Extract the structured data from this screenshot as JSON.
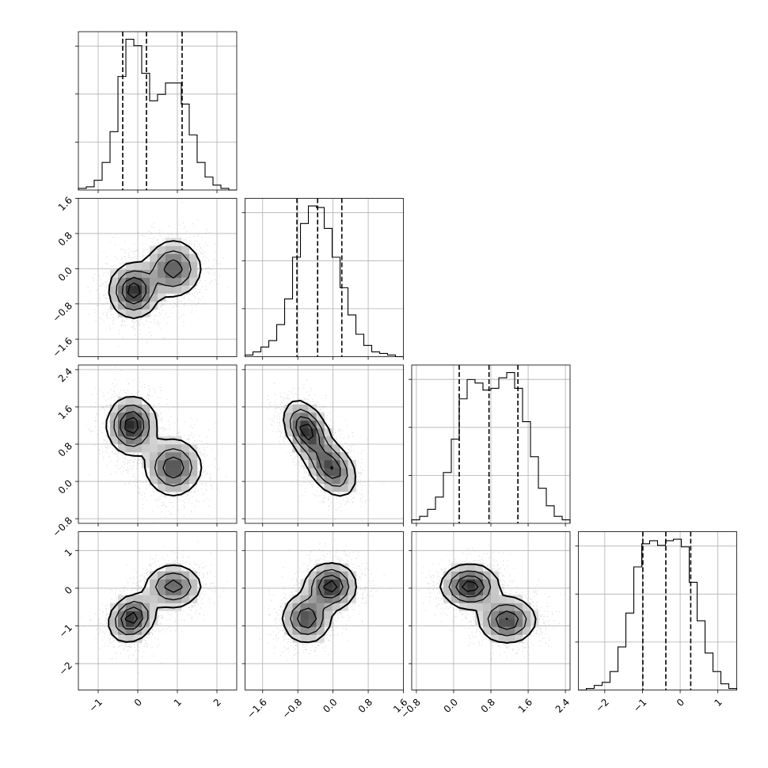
{
  "chart_data": {
    "type": "corner",
    "n_params": 4,
    "grid": true,
    "axis_ranges": [
      [
        -1.5,
        2.5
      ],
      [
        -2.0,
        1.6
      ],
      [
        -0.9,
        2.5
      ],
      [
        -2.7,
        1.5
      ]
    ],
    "tick_values": [
      [
        -1,
        0,
        1,
        2
      ],
      [
        -1.6,
        -0.8,
        0.0,
        0.8,
        1.6
      ],
      [
        -0.8,
        0.0,
        0.8,
        1.6,
        2.4
      ],
      [
        -2,
        -1,
        0,
        1
      ]
    ],
    "tick_labels": [
      [
        "−1",
        "0",
        "1",
        "2"
      ],
      [
        "−1.6",
        "−0.8",
        "0.0",
        "0.8",
        "1.6"
      ],
      [
        "−0.8",
        "0.0",
        "0.8",
        "1.6",
        "2.4"
      ],
      [
        "−2",
        "−1",
        "0",
        "1"
      ]
    ],
    "quantiles": [
      [
        -0.38,
        0.22,
        1.12
      ],
      [
        -0.82,
        -0.35,
        0.2
      ],
      [
        0.12,
        0.76,
        1.38
      ],
      [
        -0.99,
        -0.38,
        0.28
      ]
    ],
    "histograms": [
      {
        "bin_edges": [
          -1.5,
          -1.3,
          -1.1,
          -0.9,
          -0.7,
          -0.5,
          -0.3,
          -0.1,
          0.1,
          0.3,
          0.5,
          0.7,
          0.9,
          1.1,
          1.3,
          1.5,
          1.7,
          1.9,
          2.1,
          2.3,
          2.5
        ],
        "counts": [
          0.01,
          0.02,
          0.06,
          0.17,
          0.36,
          0.7,
          0.93,
          0.89,
          0.72,
          0.55,
          0.59,
          0.66,
          0.66,
          0.53,
          0.34,
          0.17,
          0.08,
          0.03,
          0.01,
          0.0
        ]
      },
      {
        "bin_edges": [
          -2.0,
          -1.82,
          -1.64,
          -1.46,
          -1.28,
          -1.1,
          -0.92,
          -0.74,
          -0.56,
          -0.38,
          -0.2,
          -0.02,
          0.16,
          0.34,
          0.52,
          0.7,
          0.88,
          1.06,
          1.24,
          1.42,
          1.6
        ],
        "counts": [
          0.01,
          0.03,
          0.06,
          0.1,
          0.2,
          0.36,
          0.62,
          0.83,
          0.94,
          0.93,
          0.8,
          0.62,
          0.43,
          0.26,
          0.14,
          0.07,
          0.03,
          0.02,
          0.01,
          0.0
        ]
      },
      {
        "bin_edges": [
          -0.9,
          -0.73,
          -0.56,
          -0.39,
          -0.22,
          -0.05,
          0.12,
          0.29,
          0.46,
          0.63,
          0.8,
          0.97,
          1.14,
          1.31,
          1.48,
          1.65,
          1.82,
          1.99,
          2.16,
          2.33,
          2.5
        ],
        "counts": [
          0.02,
          0.04,
          0.08,
          0.15,
          0.29,
          0.48,
          0.71,
          0.82,
          0.8,
          0.76,
          0.77,
          0.83,
          0.86,
          0.77,
          0.58,
          0.38,
          0.2,
          0.1,
          0.04,
          0.02
        ]
      },
      {
        "bin_edges": [
          -2.7,
          -2.49,
          -2.28,
          -2.07,
          -1.86,
          -1.65,
          -1.44,
          -1.23,
          -1.02,
          -0.81,
          -0.6,
          -0.39,
          -0.18,
          0.03,
          0.24,
          0.45,
          0.66,
          0.87,
          1.08,
          1.29,
          1.5
        ],
        "counts": [
          0.0,
          0.01,
          0.03,
          0.05,
          0.12,
          0.28,
          0.5,
          0.8,
          0.95,
          0.97,
          0.94,
          0.97,
          0.98,
          0.93,
          0.7,
          0.45,
          0.24,
          0.12,
          0.04,
          0.01
        ]
      }
    ],
    "pairs": [
      {
        "x": 0,
        "y": 1,
        "modes": [
          {
            "mean": [
              -0.1,
              -0.5
            ],
            "sd": [
              0.3,
              0.3
            ],
            "rho": 0.0,
            "w": 1.0
          },
          {
            "mean": [
              0.9,
              0.0
            ],
            "sd": [
              0.35,
              0.32
            ],
            "rho": 0.0,
            "w": 0.75
          }
        ],
        "noise": [
          0.55,
          0.5
        ]
      },
      {
        "x": 0,
        "y": 2,
        "modes": [
          {
            "mean": [
              -0.15,
              1.2
            ],
            "sd": [
              0.3,
              0.3
            ],
            "rho": 0.0,
            "w": 1.0
          },
          {
            "mean": [
              0.9,
              0.3
            ],
            "sd": [
              0.35,
              0.3
            ],
            "rho": 0.0,
            "w": 0.8
          }
        ],
        "noise": [
          0.55,
          0.55
        ]
      },
      {
        "x": 1,
        "y": 2,
        "modes": [
          {
            "mean": [
              -0.6,
              1.1
            ],
            "sd": [
              0.25,
              0.3
            ],
            "rho": -0.4,
            "w": 1.0
          },
          {
            "mean": [
              -0.05,
              0.3
            ],
            "sd": [
              0.28,
              0.3
            ],
            "rho": -0.4,
            "w": 0.85
          }
        ],
        "noise": [
          0.5,
          0.55
        ]
      },
      {
        "x": 0,
        "y": 3,
        "modes": [
          {
            "mean": [
              -0.15,
              -0.8
            ],
            "sd": [
              0.28,
              0.3
            ],
            "rho": 0.2,
            "w": 1.0
          },
          {
            "mean": [
              0.9,
              0.05
            ],
            "sd": [
              0.35,
              0.28
            ],
            "rho": 0.0,
            "w": 0.75
          }
        ],
        "noise": [
          0.55,
          0.55
        ]
      },
      {
        "x": 1,
        "y": 3,
        "modes": [
          {
            "mean": [
              -0.6,
              -0.8
            ],
            "sd": [
              0.27,
              0.32
            ],
            "rho": 0.0,
            "w": 0.85
          },
          {
            "mean": [
              -0.05,
              0.05
            ],
            "sd": [
              0.28,
              0.3
            ],
            "rho": 0.0,
            "w": 1.0
          }
        ],
        "noise": [
          0.5,
          0.55
        ]
      },
      {
        "x": 2,
        "y": 3,
        "modes": [
          {
            "mean": [
              0.35,
              0.05
            ],
            "sd": [
              0.3,
              0.28
            ],
            "rho": 0.0,
            "w": 1.0
          },
          {
            "mean": [
              1.15,
              -0.85
            ],
            "sd": [
              0.3,
              0.3
            ],
            "rho": 0.0,
            "w": 0.85
          }
        ],
        "noise": [
          0.55,
          0.55
        ]
      }
    ],
    "contour_levels": [
      0.12,
      0.35,
      0.62,
      0.85
    ],
    "colors": {
      "line": "#000000",
      "grid": "#b0b0b0",
      "points": "#7f7f7f",
      "background": "#ffffff"
    }
  }
}
